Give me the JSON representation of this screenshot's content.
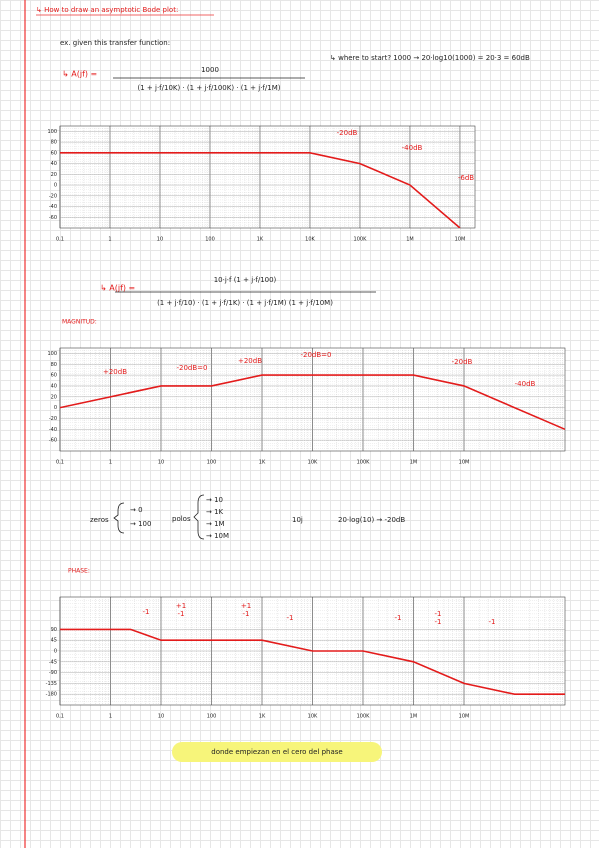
{
  "heading": "↳ How to draw an asymptotic Bode plot:",
  "intro": "ex. given this transfer function:",
  "formula1": {
    "lhs": "↳ A(jf) =",
    "numerator": "1000",
    "denominator": "(1 + j·f/10K) · (1 + j·f/100K) · (1 + j·f/1M)"
  },
  "start_note": "↳ where to start? 1000 → 20·log10(1000) = 20·3 = 60dB",
  "formula2": {
    "lhs": "↳ A(jf) =",
    "numerator": "10·j·f (1 + j·f/100)",
    "denominator": "(1 + j·f/10) · (1 + j·f/1K) · (1 + j·f/1M) (1 + j·f/10M)"
  },
  "magnitude_label": "MAGNITUD:",
  "zeros": {
    "label": "zeros",
    "items": [
      "→ 0",
      "→ 100"
    ]
  },
  "poles": {
    "label": "polos",
    "items": [
      "→ 10",
      "→ 1K",
      "→ 1M",
      "→ 10M"
    ]
  },
  "note_10j": "10j",
  "note_log": "20·log(10) → -20dB",
  "phase_label": "PHASE:",
  "footer": "donde empiezan en el cero del phase",
  "chart_data": [
    {
      "type": "line",
      "log_x": true,
      "grid": true,
      "color": "#e31b1b",
      "x": [
        0.1,
        10000,
        100000,
        1000000,
        10000000
      ],
      "values": [
        60,
        60,
        40,
        0,
        -80
      ],
      "xlim": [
        0.1,
        20000000
      ],
      "ylim": [
        -80,
        110
      ],
      "xticks": [
        {
          "value": 0.1,
          "label": "0,1"
        },
        1,
        10,
        100,
        {
          "value": 1000,
          "label": "1K"
        },
        {
          "value": 10000,
          "label": "10K"
        },
        {
          "value": 100000,
          "label": "100K"
        },
        {
          "value": 1000000,
          "label": "1M"
        },
        {
          "value": 10000000,
          "label": "10M"
        }
      ],
      "yticks": [
        100,
        80,
        60,
        40,
        20,
        0,
        -20,
        -40,
        -60
      ],
      "annotations": [
        "-20dB",
        "-40dB",
        "-6dB"
      ]
    },
    {
      "type": "line",
      "log_x": true,
      "grid": true,
      "color": "#e31b1b",
      "x": [
        0.1,
        10,
        100,
        1000,
        1000000,
        10000000,
        1000000000
      ],
      "values": [
        0,
        40,
        40,
        60,
        60,
        40,
        -40
      ],
      "xlim": [
        0.1,
        1000000000
      ],
      "ylim": [
        -80,
        110
      ],
      "xticks": [
        {
          "value": 0.1,
          "label": "0,1"
        },
        1,
        10,
        100,
        {
          "value": 1000,
          "label": "1K"
        },
        {
          "value": 10000,
          "label": "10K"
        },
        {
          "value": 100000,
          "label": "100K"
        },
        {
          "value": 1000000,
          "label": "1M"
        },
        {
          "value": 10000000,
          "label": "10M"
        }
      ],
      "yticks": [
        100,
        80,
        60,
        40,
        20,
        0,
        -20,
        -40,
        -60
      ],
      "annotations": [
        "+20dB",
        "-20dB=0",
        "+20dB",
        "-20dB=0",
        "-20dB",
        "-40dB"
      ]
    },
    {
      "type": "line",
      "log_x": true,
      "grid": true,
      "color": "#e31b1b",
      "x": [
        0.1,
        2.5,
        10,
        100,
        1000,
        10000,
        100000,
        1000000,
        10000000,
        100000000,
        1000000000
      ],
      "values": [
        90,
        90,
        45,
        45,
        45,
        0,
        0,
        -45,
        -135,
        -180,
        -180
      ],
      "xlim": [
        0.1,
        1000000000
      ],
      "ylim": [
        -225,
        225
      ],
      "xticks": [
        {
          "value": 0.1,
          "label": "0,1"
        },
        1,
        10,
        100,
        {
          "value": 1000,
          "label": "1K"
        },
        {
          "value": 10000,
          "label": "10K"
        },
        {
          "value": 100000,
          "label": "100K"
        },
        {
          "value": 1000000,
          "label": "1M"
        },
        {
          "value": 10000000,
          "label": "10M"
        }
      ],
      "yticks": [
        90,
        45,
        0,
        -45,
        -90,
        -135,
        -180
      ],
      "annotations": [
        "-1",
        "+1",
        "-1",
        "+1",
        "-1",
        "-1",
        "-1",
        "-1",
        "-1",
        "-1"
      ]
    }
  ]
}
